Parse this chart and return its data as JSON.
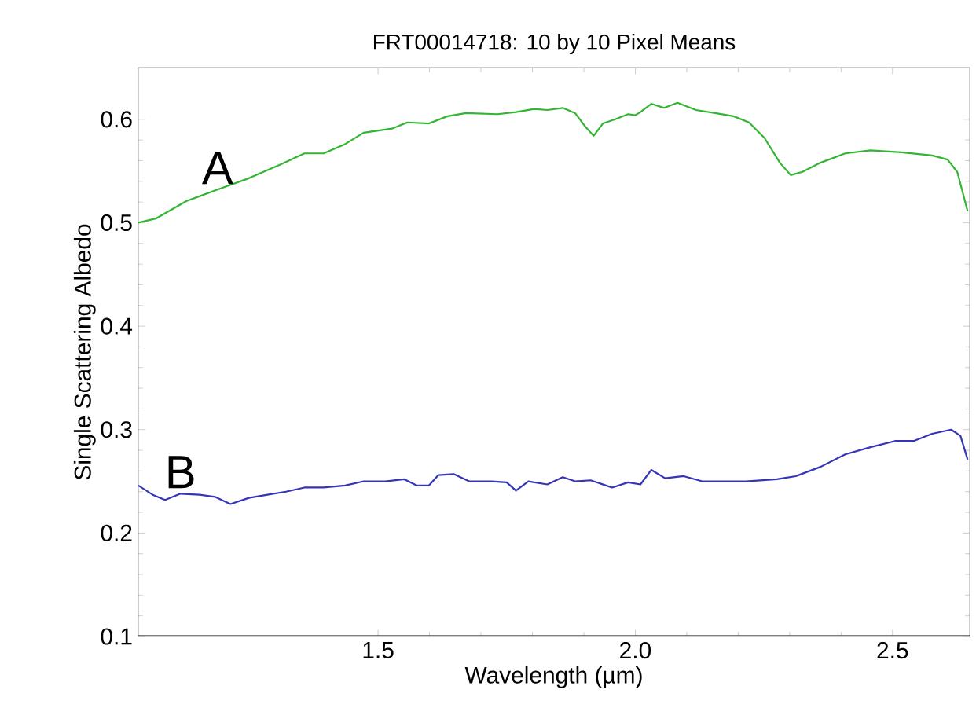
{
  "chart_data": {
    "type": "line",
    "title": "FRT00014718: 10 by 10 Pixel Means",
    "xlabel": "Wavelength (µm)",
    "ylabel": "Single Scattering Albedo",
    "xlim": [
      1.034,
      2.65
    ],
    "ylim": [
      0.1,
      0.65
    ],
    "xticks": [
      {
        "value": 1.5,
        "label": "1.5"
      },
      {
        "value": 2.0,
        "label": "2.0"
      },
      {
        "value": 2.5,
        "label": "2.5"
      }
    ],
    "yticks": [
      0.1,
      0.2,
      0.3,
      0.4,
      0.5,
      0.6
    ],
    "grid": false,
    "marker": "none",
    "line_style": "solid",
    "series": [
      {
        "name": "A",
        "color": "#33b533",
        "x": [
          1.034,
          1.068,
          1.128,
          1.188,
          1.249,
          1.309,
          1.357,
          1.394,
          1.436,
          1.472,
          1.527,
          1.557,
          1.599,
          1.635,
          1.671,
          1.732,
          1.768,
          1.804,
          1.829,
          1.859,
          1.883,
          1.901,
          1.919,
          1.937,
          1.961,
          1.986,
          2.0,
          2.01,
          2.031,
          2.056,
          2.082,
          2.118,
          2.155,
          2.191,
          2.221,
          2.251,
          2.281,
          2.302,
          2.324,
          2.36,
          2.408,
          2.457,
          2.517,
          2.577,
          2.607,
          2.626,
          2.646
        ],
        "values": [
          0.5,
          0.504,
          0.521,
          0.532,
          0.543,
          0.556,
          0.567,
          0.567,
          0.576,
          0.587,
          0.591,
          0.597,
          0.596,
          0.603,
          0.606,
          0.605,
          0.607,
          0.61,
          0.609,
          0.611,
          0.606,
          0.594,
          0.584,
          0.596,
          0.6,
          0.605,
          0.604,
          0.607,
          0.615,
          0.611,
          0.616,
          0.609,
          0.606,
          0.603,
          0.597,
          0.582,
          0.558,
          0.546,
          0.549,
          0.558,
          0.567,
          0.57,
          0.568,
          0.565,
          0.561,
          0.549,
          0.511
        ]
      },
      {
        "name": "B",
        "color": "#3535b8",
        "x": [
          1.034,
          1.062,
          1.086,
          1.116,
          1.153,
          1.183,
          1.213,
          1.249,
          1.285,
          1.321,
          1.357,
          1.394,
          1.436,
          1.472,
          1.514,
          1.551,
          1.575,
          1.599,
          1.617,
          1.647,
          1.677,
          1.72,
          1.75,
          1.768,
          1.792,
          1.829,
          1.859,
          1.883,
          1.913,
          1.955,
          1.986,
          2.01,
          2.031,
          2.058,
          2.094,
          2.13,
          2.179,
          2.215,
          2.275,
          2.312,
          2.36,
          2.408,
          2.457,
          2.505,
          2.541,
          2.577,
          2.614,
          2.632,
          2.646
        ],
        "values": [
          0.246,
          0.237,
          0.232,
          0.238,
          0.237,
          0.235,
          0.228,
          0.234,
          0.237,
          0.24,
          0.244,
          0.244,
          0.246,
          0.25,
          0.25,
          0.252,
          0.246,
          0.246,
          0.256,
          0.257,
          0.25,
          0.25,
          0.249,
          0.241,
          0.25,
          0.247,
          0.254,
          0.25,
          0.251,
          0.244,
          0.249,
          0.247,
          0.261,
          0.253,
          0.255,
          0.25,
          0.25,
          0.25,
          0.252,
          0.255,
          0.264,
          0.276,
          0.283,
          0.289,
          0.289,
          0.296,
          0.3,
          0.294,
          0.271
        ]
      }
    ]
  }
}
